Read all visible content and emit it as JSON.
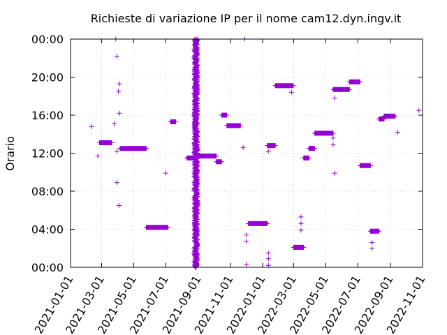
{
  "chart_data": {
    "type": "scatter",
    "title": "Richieste di variazione IP per il nome cam12.dyn.ingv.it",
    "ylabel": "Orario",
    "xlabel": "",
    "x_ticks": [
      "2021-01-01",
      "2021-03-01",
      "2021-05-01",
      "2021-07-01",
      "2021-09-01",
      "2021-11-01",
      "2022-01-01",
      "2022-03-01",
      "2022-05-01",
      "2022-07-01",
      "2022-09-01",
      "2022-11-01"
    ],
    "y_ticks": [
      "00:00",
      "04:00",
      "08:00",
      "12:00",
      "16:00",
      "20:00",
      "00:00"
    ],
    "xlim": [
      "2021-01-01",
      "2022-11-01"
    ],
    "ylim": [
      0,
      24
    ],
    "grid": true,
    "marker": "+",
    "color": "#9400d3",
    "dense_band": {
      "from": "2021-08-25",
      "to": "2021-08-31",
      "ylim": [
        0,
        24
      ]
    },
    "segments": [
      {
        "from": "2021-02-25",
        "to": "2021-03-20",
        "y": 13.1
      },
      {
        "from": "2021-04-05",
        "to": "2021-05-25",
        "y": 12.5
      },
      {
        "from": "2021-05-25",
        "to": "2021-07-05",
        "y": 4.2
      },
      {
        "from": "2021-07-10",
        "to": "2021-07-20",
        "y": 15.3
      },
      {
        "from": "2021-08-10",
        "to": "2021-08-25",
        "y": 11.5
      },
      {
        "from": "2021-08-31",
        "to": "2021-10-05",
        "y": 11.7
      },
      {
        "from": "2021-10-05",
        "to": "2021-10-15",
        "y": 11.1
      },
      {
        "from": "2021-10-15",
        "to": "2021-10-25",
        "y": 16.0
      },
      {
        "from": "2021-10-25",
        "to": "2021-11-20",
        "y": 14.9
      },
      {
        "from": "2021-12-05",
        "to": "2022-01-10",
        "y": 4.6
      },
      {
        "from": "2022-01-10",
        "to": "2022-01-25",
        "y": 12.8
      },
      {
        "from": "2022-01-25",
        "to": "2022-02-28",
        "y": 19.1
      },
      {
        "from": "2022-03-01",
        "to": "2022-03-20",
        "y": 2.1
      },
      {
        "from": "2022-03-20",
        "to": "2022-03-30",
        "y": 11.5
      },
      {
        "from": "2022-03-30",
        "to": "2022-04-10",
        "y": 12.5
      },
      {
        "from": "2022-04-10",
        "to": "2022-05-15",
        "y": 14.1
      },
      {
        "from": "2022-05-15",
        "to": "2022-06-15",
        "y": 18.7
      },
      {
        "from": "2022-06-15",
        "to": "2022-07-05",
        "y": 19.5
      },
      {
        "from": "2022-07-05",
        "to": "2022-07-25",
        "y": 10.7
      },
      {
        "from": "2022-07-25",
        "to": "2022-08-10",
        "y": 3.8
      },
      {
        "from": "2022-08-10",
        "to": "2022-08-20",
        "y": 15.6
      },
      {
        "from": "2022-08-20",
        "to": "2022-09-10",
        "y": 15.9
      }
    ],
    "points": [
      {
        "x": "2021-02-10",
        "y": 14.8
      },
      {
        "x": "2021-02-22",
        "y": 11.7
      },
      {
        "x": "2021-03-25",
        "y": 15.1
      },
      {
        "x": "2021-03-28",
        "y": 24.0
      },
      {
        "x": "2021-03-30",
        "y": 22.2
      },
      {
        "x": "2021-03-30",
        "y": 12.2
      },
      {
        "x": "2021-03-30",
        "y": 8.9
      },
      {
        "x": "2021-04-02",
        "y": 18.5
      },
      {
        "x": "2021-04-04",
        "y": 19.3
      },
      {
        "x": "2021-04-04",
        "y": 16.2
      },
      {
        "x": "2021-04-03",
        "y": 6.5
      },
      {
        "x": "2021-07-01",
        "y": 9.9
      },
      {
        "x": "2021-11-25",
        "y": 12.6
      },
      {
        "x": "2021-11-28",
        "y": 24.0
      },
      {
        "x": "2021-12-01",
        "y": 3.4
      },
      {
        "x": "2021-12-01",
        "y": 2.7
      },
      {
        "x": "2021-12-01",
        "y": 0.3
      },
      {
        "x": "2022-01-12",
        "y": 12.2
      },
      {
        "x": "2022-01-12",
        "y": 1.5
      },
      {
        "x": "2022-01-12",
        "y": 0.9
      },
      {
        "x": "2022-01-12",
        "y": 0.2
      },
      {
        "x": "2022-02-25",
        "y": 18.4
      },
      {
        "x": "2022-03-15",
        "y": 5.3
      },
      {
        "x": "2022-03-15",
        "y": 4.6
      },
      {
        "x": "2022-03-15",
        "y": 3.9
      },
      {
        "x": "2022-05-15",
        "y": 13.6
      },
      {
        "x": "2022-05-15",
        "y": 12.9
      },
      {
        "x": "2022-05-18",
        "y": 9.9
      },
      {
        "x": "2022-05-18",
        "y": 17.8
      },
      {
        "x": "2022-07-28",
        "y": 2.6
      },
      {
        "x": "2022-07-28",
        "y": 2.0
      },
      {
        "x": "2022-09-15",
        "y": 14.2
      },
      {
        "x": "2022-10-25",
        "y": 16.5
      }
    ]
  }
}
